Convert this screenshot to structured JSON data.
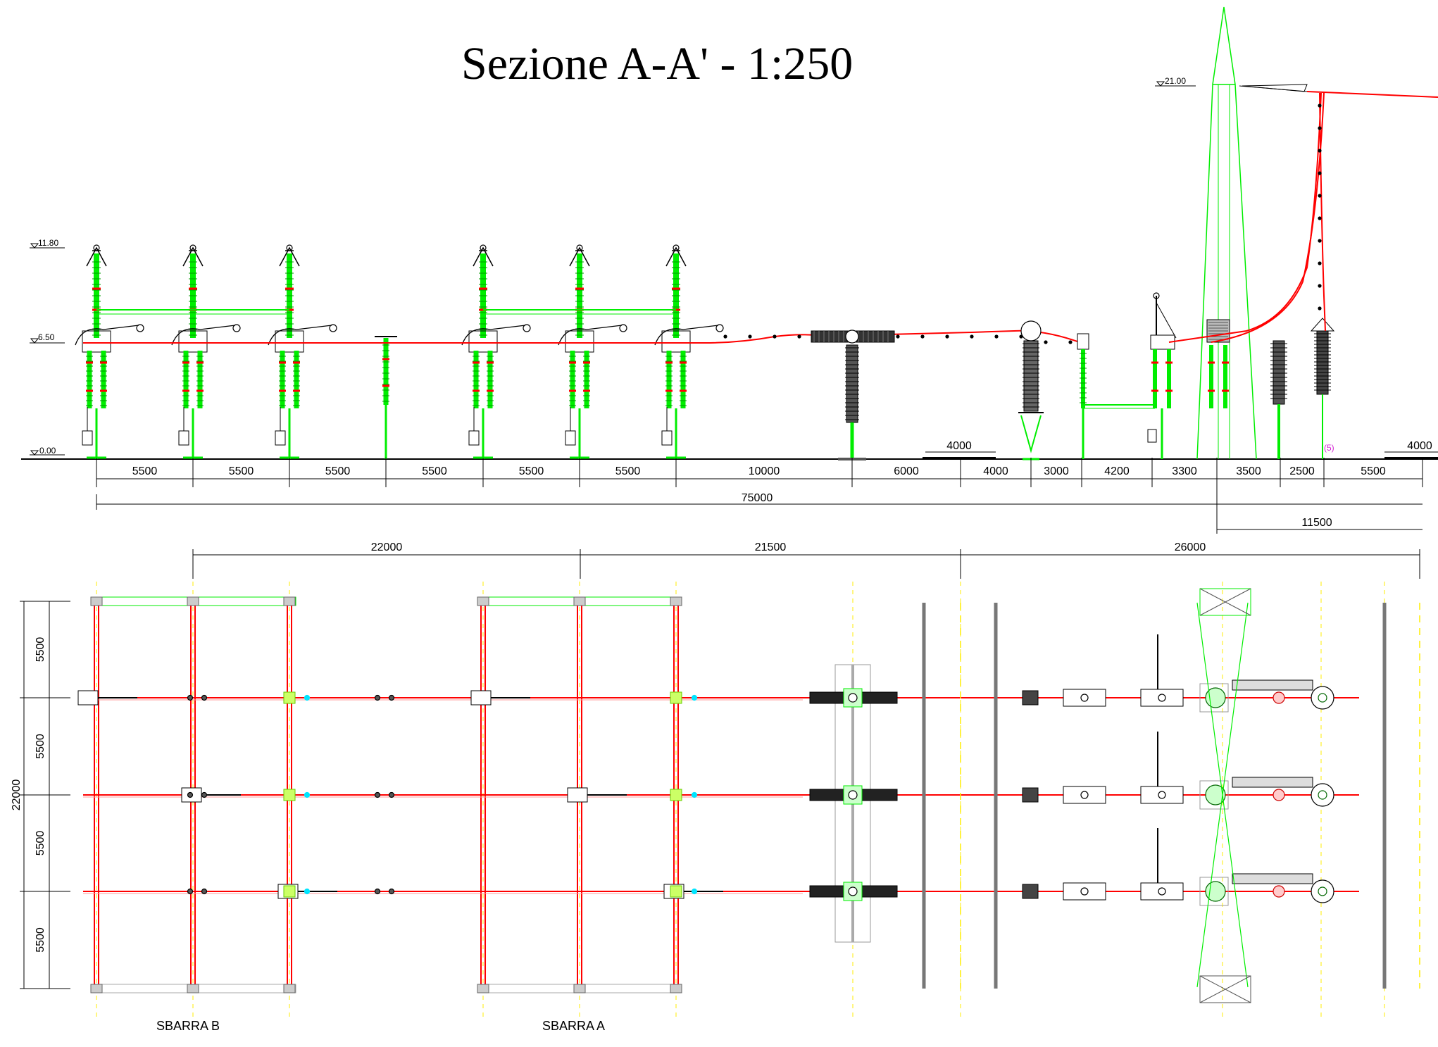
{
  "title": "Sezione A-A' - 1:250",
  "levels": [
    "11.80",
    "6.50",
    "0.00",
    "21.00"
  ],
  "section_dims": [
    "5500",
    "5500",
    "5500",
    "5500",
    "5500",
    "5500",
    "10000",
    "6000",
    "4000",
    "3000",
    "4200",
    "3300",
    "3500",
    "2500",
    "5500"
  ],
  "total_dim": "75000",
  "right_dim": "11500",
  "road_dims": [
    "4000",
    "4000"
  ],
  "note": "(5)",
  "plan_dims": [
    "22000",
    "21500",
    "26000"
  ],
  "vertical_dims": [
    "5500",
    "5500",
    "5500",
    "5500"
  ],
  "vertical_total": "22000",
  "bus_labels": [
    "SBARRA B",
    "SBARRA A"
  ],
  "colors": {
    "conductor": "#ff0000",
    "insulator": "#00ee00",
    "structure": "#000000",
    "axis": "#ffee00",
    "connector": "#00e5ff"
  }
}
